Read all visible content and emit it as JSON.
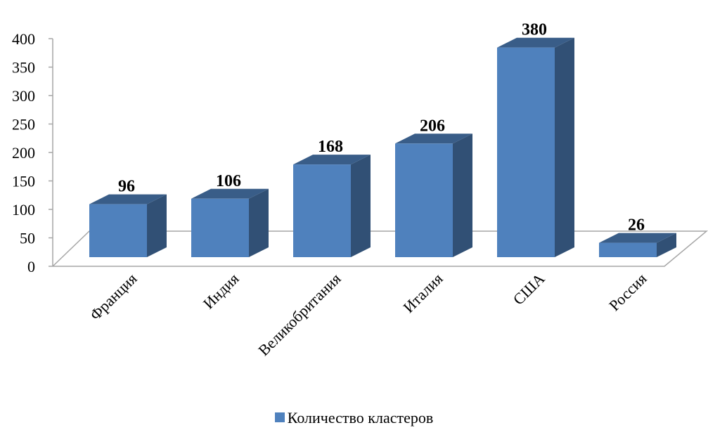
{
  "chart_data": {
    "type": "bar",
    "categories": [
      "Франция",
      "Индия",
      "Великобритания",
      "Италия",
      "США",
      "Россия"
    ],
    "series": [
      {
        "name": "Количество кластеров",
        "values": [
          96,
          106,
          168,
          206,
          380,
          26
        ],
        "color": "#4F81BD"
      }
    ],
    "yticks": [
      0,
      50,
      100,
      150,
      200,
      250,
      300,
      350,
      400
    ],
    "ylim": [
      0,
      400
    ],
    "style": "3d-column",
    "legend_position": "bottom",
    "grid": false
  }
}
